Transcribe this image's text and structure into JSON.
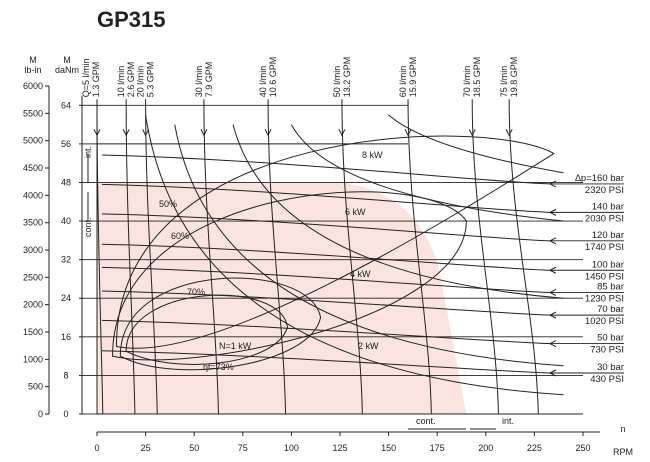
{
  "chart_data": {
    "type": "line",
    "title": "GP315",
    "left_axis": {
      "label_line1": "M",
      "label_line2": "lb-in",
      "range": [
        0,
        6000
      ],
      "ticks": [
        0,
        500,
        1000,
        1500,
        2000,
        2500,
        3000,
        3500,
        4000,
        4500,
        5000,
        5500,
        6000
      ]
    },
    "inner_axis": {
      "label_line1": "M",
      "label_line2": "daNm",
      "range": [
        0,
        68
      ],
      "ticks": [
        0,
        8,
        16,
        24,
        32,
        40,
        48,
        56,
        64
      ]
    },
    "x_axis": {
      "label_line1": "n",
      "label_line2": "RPM",
      "range": [
        0,
        250
      ],
      "ticks": [
        0,
        25,
        50,
        75,
        100,
        125,
        150,
        175,
        200,
        225,
        250
      ]
    },
    "flow_lines": [
      {
        "rpm": 0,
        "line1": "Q=5 l/min",
        "line2": "1.3 GPM"
      },
      {
        "rpm": 15,
        "line1": "10 l/min",
        "line2": "2.6 GPM"
      },
      {
        "rpm": 25,
        "line1": "20 l/min",
        "line2": "5.3 GPM"
      },
      {
        "rpm": 55,
        "line1": "30 l/min",
        "line2": "7.9 GPM"
      },
      {
        "rpm": 88,
        "line1": "40 l/min",
        "line2": "10.6 GPM"
      },
      {
        "rpm": 126,
        "line1": "50 l/min",
        "line2": "13.2 GPM"
      },
      {
        "rpm": 160,
        "line1": "60 l/min",
        "line2": "15.9 GPM"
      },
      {
        "rpm": 193,
        "line1": "70 l/min",
        "line2": "18.5 GPM"
      },
      {
        "rpm": 212,
        "line1": "75 l/min",
        "line2": "19.8 GPM"
      }
    ],
    "pressure_lines": [
      {
        "torque": 47.7,
        "line1": "∆p=160 bar",
        "line2": "2320 PSI"
      },
      {
        "torque": 41.8,
        "line1": "140 bar",
        "line2": "2030 PSI"
      },
      {
        "torque": 35.9,
        "line1": "120 bar",
        "line2": "1740 PSI"
      },
      {
        "torque": 29.8,
        "line1": "100 bar",
        "line2": "1450 PSI"
      },
      {
        "torque": 25.2,
        "line1": "85 bar",
        "line2": "1230 PSI"
      },
      {
        "torque": 20.5,
        "line1": "70 bar",
        "line2": "1020 PSI"
      },
      {
        "torque": 14.6,
        "line1": "50 bar",
        "line2": "730 PSI"
      },
      {
        "torque": 8.5,
        "line1": "30 bar",
        "line2": "430 PSI"
      }
    ],
    "power_labels": [
      "8 kW",
      "6 kW",
      "4 kW",
      "2 kW",
      "N=1 kW"
    ],
    "efficiency_labels": [
      "50%",
      "60%",
      "70%",
      "ηt=73%"
    ],
    "region_labels": {
      "int_vertical": "int.",
      "cont_vertical": "cont.",
      "cont_bottom": "cont.",
      "int_bottom": "int."
    },
    "continuous_region": {
      "max_rpm": 190,
      "max_torque": 48
    },
    "grid": true,
    "colors": {
      "continuous_fill": "#fbe4df",
      "line": "#222222"
    }
  }
}
